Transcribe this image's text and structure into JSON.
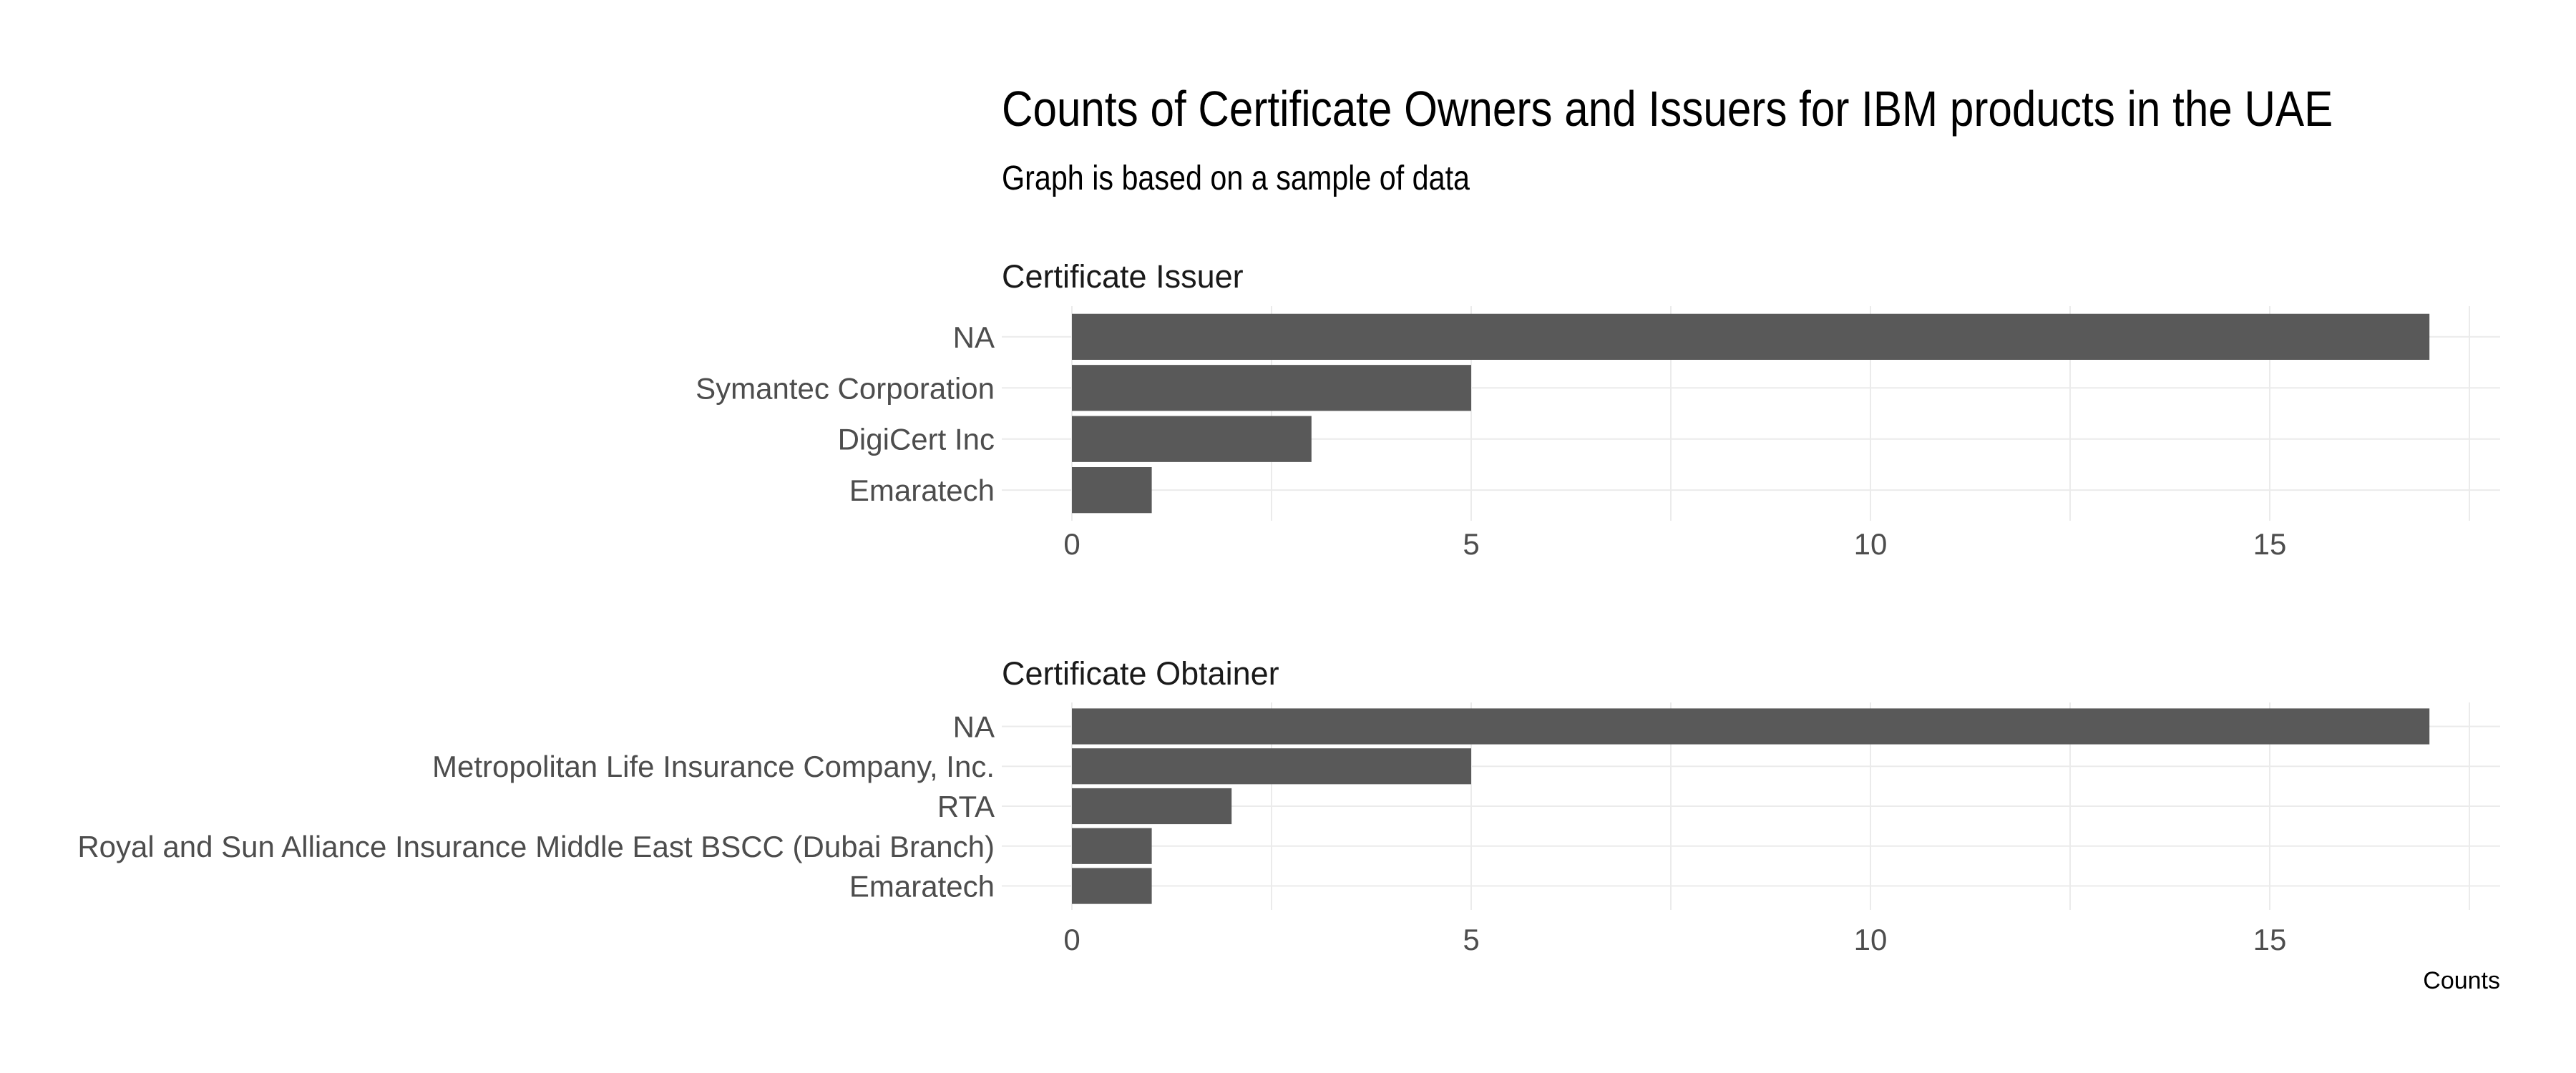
{
  "chart_data": {
    "type": "bar",
    "orientation": "horizontal",
    "title": "Counts of Certificate Owners and Issuers for IBM products in the UAE",
    "subtitle": "Graph is based on a sample of data",
    "xlabel": "Counts",
    "xlim": [
      0,
      18
    ],
    "xticks": [
      0,
      5,
      10,
      15
    ],
    "grid": true,
    "panels": [
      {
        "title": "Certificate Issuer",
        "categories": [
          "NA",
          "Symantec Corporation",
          "DigiCert Inc",
          "Emaratech"
        ],
        "values": [
          17,
          5,
          3,
          1
        ]
      },
      {
        "title": "Certificate Obtainer",
        "categories": [
          "NA",
          "Metropolitan Life Insurance Company, Inc.",
          "RTA",
          "Royal and Sun Alliance Insurance Middle East BSCC (Dubai Branch)",
          "Emaratech"
        ],
        "values": [
          17,
          5,
          2,
          1,
          1
        ]
      }
    ],
    "colors": {
      "bar": "#595959",
      "grid": "#ebebeb",
      "text": "#4d4d4d"
    }
  }
}
